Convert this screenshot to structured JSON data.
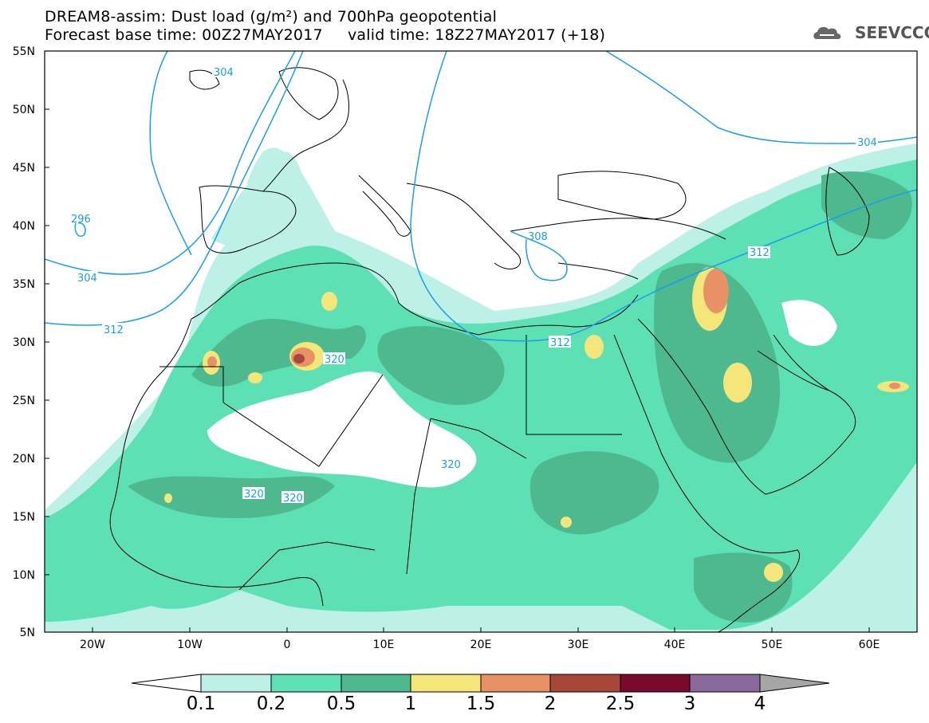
{
  "title": {
    "line1": "DREAM8-assim: Dust load (g/m²) and 700hPa geopotential",
    "line2": "Forecast base time: 00Z27MAY2017     valid time: 18Z27MAY2017 (+18)"
  },
  "logo": {
    "text": "SEEVCCC",
    "icon": "cloud-icon"
  },
  "map": {
    "lat_labels": [
      "55N",
      "50N",
      "45N",
      "40N",
      "35N",
      "30N",
      "25N",
      "20N",
      "15N",
      "10N",
      "5N"
    ],
    "lon_labels": [
      "20W",
      "10W",
      "0",
      "10E",
      "20E",
      "30E",
      "40E",
      "50E",
      "60E"
    ],
    "contour_labels": [
      {
        "id": "c304a",
        "text": "304"
      },
      {
        "id": "c296",
        "text": "296"
      },
      {
        "id": "c304b",
        "text": "304"
      },
      {
        "id": "c312a",
        "text": "312"
      },
      {
        "id": "c304c",
        "text": "304"
      },
      {
        "id": "c312b",
        "text": "312"
      },
      {
        "id": "c312c",
        "text": "312"
      },
      {
        "id": "c308",
        "text": "308"
      },
      {
        "id": "c320a",
        "text": "320"
      },
      {
        "id": "c320b",
        "text": "320"
      },
      {
        "id": "c320c",
        "text": "320"
      },
      {
        "id": "c320d",
        "text": "320"
      }
    ]
  },
  "colorbar": {
    "labels": [
      "0.1",
      "0.2",
      "0.5",
      "1",
      "1.5",
      "2",
      "2.5",
      "3",
      "4"
    ],
    "colors": [
      "#bdf0e6",
      "#5ee0b5",
      "#4eb88f",
      "#f5e67a",
      "#e89066",
      "#a8463c",
      "#7a0a2c",
      "#8a6a9a",
      "#a6a6a6"
    ]
  },
  "colors": {
    "contour_line": "#1a9ee8",
    "contour_label": "#1a9ee8",
    "coast": "#000000",
    "dust_0_1": "#bdf0e6",
    "dust_0_2": "#5ee0b5",
    "dust_0_5": "#4eb88f",
    "dust_1": "#f5e67a",
    "dust_1_5": "#e89066",
    "dust_2": "#a8463c"
  }
}
